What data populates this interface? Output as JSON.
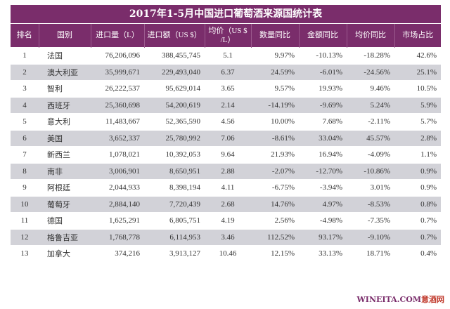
{
  "title": "2017年1-5月中国进口葡萄酒来源国统计表",
  "headers": [
    "排名",
    "国别",
    "进口量（L）",
    "进口额（US $）",
    "均价（US $ /L）",
    "数量同比",
    "金额同比",
    "均价同比",
    "市场占比"
  ],
  "rows": [
    [
      "1",
      "法国",
      "76,206,096",
      "388,455,745",
      "5.1",
      "9.97%",
      "-10.13%",
      "-18.28%",
      "42.6%"
    ],
    [
      "2",
      "澳大利亚",
      "35,999,671",
      "229,493,040",
      "6.37",
      "24.59%",
      "-6.01%",
      "-24.56%",
      "25.1%"
    ],
    [
      "3",
      "智利",
      "26,222,537",
      "95,629,014",
      "3.65",
      "9.57%",
      "19.93%",
      "9.46%",
      "10.5%"
    ],
    [
      "4",
      "西班牙",
      "25,360,698",
      "54,200,619",
      "2.14",
      "-14.19%",
      "-9.69%",
      "5.24%",
      "5.9%"
    ],
    [
      "5",
      "意大利",
      "11,483,667",
      "52,365,590",
      "4.56",
      "10.00%",
      "7.68%",
      "-2.11%",
      "5.7%"
    ],
    [
      "6",
      "美国",
      "3,652,337",
      "25,780,992",
      "7.06",
      "-8.61%",
      "33.04%",
      "45.57%",
      "2.8%"
    ],
    [
      "7",
      "新西兰",
      "1,078,021",
      "10,392,053",
      "9.64",
      "21.93%",
      "16.94%",
      "-4.09%",
      "1.1%"
    ],
    [
      "8",
      "南非",
      "3,006,901",
      "8,650,951",
      "2.88",
      "-2.07%",
      "-12.70%",
      "-10.86%",
      "0.9%"
    ],
    [
      "9",
      "阿根廷",
      "2,044,933",
      "8,398,194",
      "4.11",
      "-6.75%",
      "-3.94%",
      "3.01%",
      "0.9%"
    ],
    [
      "10",
      "葡萄牙",
      "2,884,140",
      "7,720,439",
      "2.68",
      "14.76%",
      "4.97%",
      "-8.53%",
      "0.8%"
    ],
    [
      "11",
      "德国",
      "1,625,291",
      "6,805,751",
      "4.19",
      "2.56%",
      "-4.98%",
      "-7.35%",
      "0.7%"
    ],
    [
      "12",
      "格鲁吉亚",
      "1,768,778",
      "6,114,953",
      "3.46",
      "112.52%",
      "93.17%",
      "-9.10%",
      "0.7%"
    ],
    [
      "13",
      "加拿大",
      "374,216",
      "3,913,127",
      "10.46",
      "12.15%",
      "33.13%",
      "18.71%",
      "0.4%"
    ]
  ],
  "watermark": {
    "en": "WINEITA.COM",
    "cn": "意酒网"
  },
  "colors": {
    "header_bg": "#7a2d6b",
    "stripe": "#d2d2d8"
  }
}
